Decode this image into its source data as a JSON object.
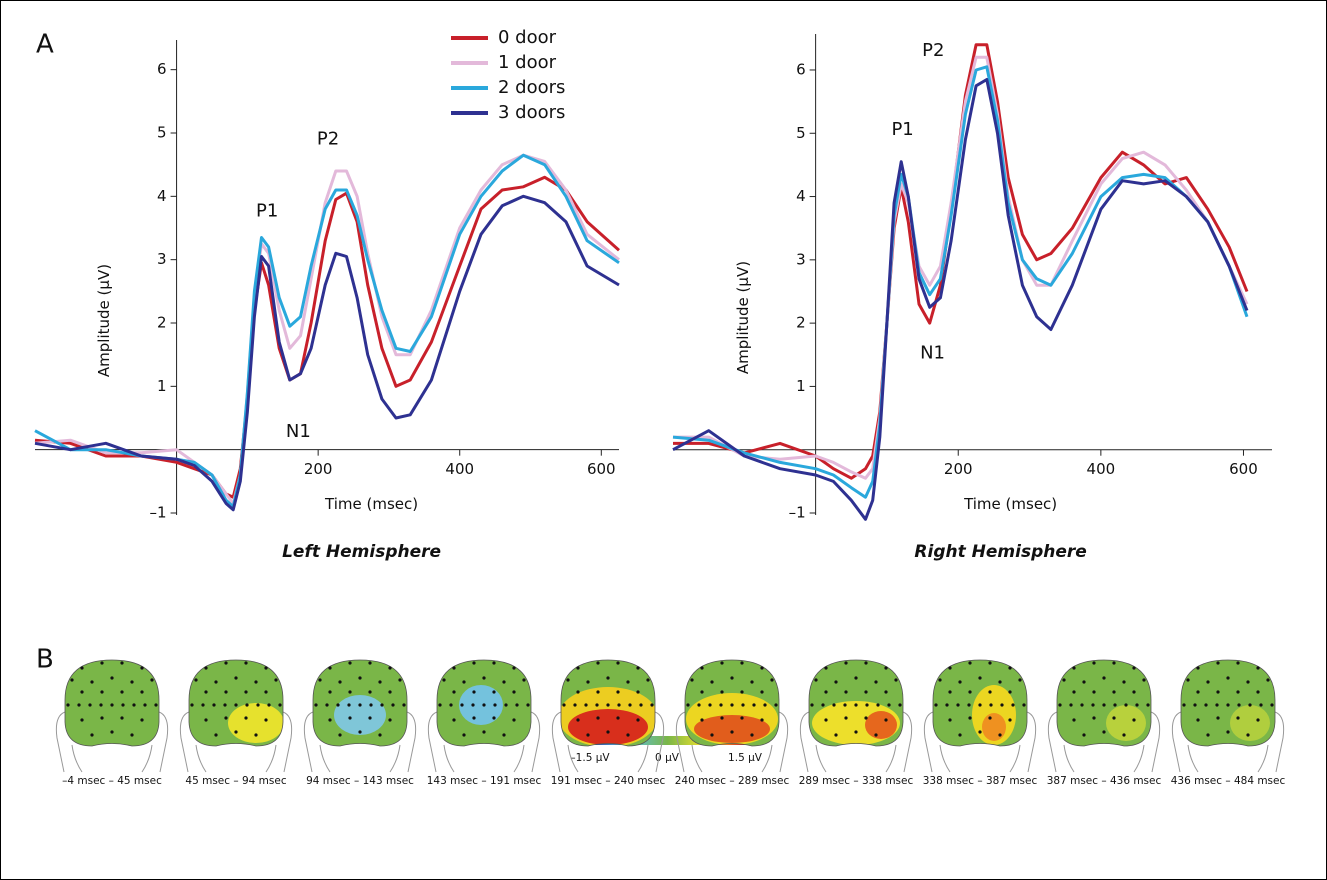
{
  "panels": {
    "a": "A",
    "b": "B"
  },
  "chart_data": [
    {
      "type": "line",
      "subtitle": "Left Hemisphere",
      "x_label": "Time (msec)",
      "y_label": "Amplitude (µV)",
      "legend": "top-right",
      "x": [
        -200,
        -150,
        -100,
        -50,
        0,
        25,
        50,
        70,
        80,
        90,
        100,
        110,
        120,
        130,
        145,
        160,
        175,
        190,
        210,
        225,
        240,
        255,
        270,
        290,
        310,
        330,
        360,
        400,
        430,
        460,
        490,
        520,
        550,
        580,
        625
      ],
      "xlim": [
        -200,
        625
      ],
      "xticks": [
        200,
        400,
        600
      ],
      "ylim": [
        -1,
        6.5
      ],
      "yticks": [
        {
          "value": -1,
          "label": "–1"
        },
        1,
        2,
        3,
        4,
        5,
        6
      ],
      "series": [
        {
          "name": "0 door",
          "color": "#c8202a",
          "values": [
            0.15,
            0.1,
            -0.1,
            -0.1,
            -0.2,
            -0.3,
            -0.4,
            -0.7,
            -0.75,
            -0.3,
            0.8,
            2.2,
            2.95,
            2.6,
            1.6,
            1.1,
            1.2,
            2.0,
            3.3,
            3.95,
            4.05,
            3.6,
            2.6,
            1.6,
            1.0,
            1.1,
            1.7,
            2.9,
            3.8,
            4.1,
            4.15,
            4.3,
            4.1,
            3.6,
            3.15
          ]
        },
        {
          "name": "1 door",
          "color": "#e3b9da",
          "values": [
            0.1,
            0.15,
            -0.05,
            -0.05,
            0.0,
            -0.2,
            -0.4,
            -0.7,
            -0.85,
            -0.4,
            0.9,
            2.4,
            3.25,
            3.1,
            2.2,
            1.6,
            1.8,
            2.7,
            3.9,
            4.4,
            4.4,
            4.0,
            3.1,
            2.1,
            1.5,
            1.5,
            2.2,
            3.5,
            4.1,
            4.5,
            4.65,
            4.55,
            4.1,
            3.4,
            3.0
          ]
        },
        {
          "name": "2 doors",
          "color": "#2aa8dc",
          "values": [
            0.3,
            0.0,
            0.0,
            -0.1,
            -0.15,
            -0.2,
            -0.4,
            -0.8,
            -0.9,
            -0.4,
            0.9,
            2.5,
            3.35,
            3.2,
            2.4,
            1.95,
            2.1,
            2.9,
            3.8,
            4.1,
            4.1,
            3.7,
            3.0,
            2.2,
            1.6,
            1.55,
            2.1,
            3.4,
            4.0,
            4.4,
            4.65,
            4.5,
            4.0,
            3.3,
            2.95
          ]
        },
        {
          "name": "3 doors",
          "color": "#2e3191",
          "values": [
            0.1,
            0.0,
            0.1,
            -0.1,
            -0.15,
            -0.25,
            -0.5,
            -0.85,
            -0.95,
            -0.5,
            0.6,
            2.1,
            3.05,
            2.9,
            1.7,
            1.1,
            1.2,
            1.6,
            2.6,
            3.1,
            3.05,
            2.4,
            1.5,
            0.8,
            0.5,
            0.55,
            1.1,
            2.5,
            3.4,
            3.85,
            4.0,
            3.9,
            3.6,
            2.9,
            2.6
          ]
        }
      ],
      "annotations": [
        {
          "text": "P1",
          "x": 128,
          "y": 3.76
        },
        {
          "text": "P2",
          "x": 214,
          "y": 4.9
        },
        {
          "text": "N1",
          "x": 172,
          "y": 0.28
        }
      ]
    },
    {
      "type": "line",
      "subtitle": "Right Hemisphere",
      "x_label": "Time (msec)",
      "y_label": "Amplitude (µV)",
      "x": [
        -200,
        -150,
        -100,
        -50,
        0,
        25,
        50,
        70,
        80,
        90,
        100,
        110,
        120,
        130,
        145,
        160,
        175,
        190,
        210,
        225,
        240,
        255,
        270,
        290,
        310,
        330,
        360,
        400,
        430,
        460,
        490,
        520,
        550,
        580,
        605
      ],
      "xlim": [
        -200,
        640
      ],
      "xticks": [
        200,
        400,
        600
      ],
      "ylim": [
        -1,
        6.6
      ],
      "yticks": [
        {
          "value": -1,
          "label": "–1"
        },
        1,
        2,
        3,
        4,
        5,
        6
      ],
      "series": [
        {
          "color": "#c8202a",
          "values": [
            0.1,
            0.1,
            -0.05,
            0.1,
            -0.1,
            -0.3,
            -0.45,
            -0.3,
            -0.1,
            0.6,
            2.0,
            3.5,
            4.15,
            3.6,
            2.3,
            2.0,
            2.6,
            3.8,
            5.6,
            6.4,
            6.4,
            5.5,
            4.3,
            3.4,
            3.0,
            3.1,
            3.5,
            4.3,
            4.7,
            4.5,
            4.2,
            4.3,
            3.8,
            3.2,
            2.5
          ]
        },
        {
          "color": "#e3b9da",
          "values": [
            0.2,
            0.2,
            -0.1,
            -0.15,
            -0.1,
            -0.2,
            -0.35,
            -0.45,
            -0.3,
            0.5,
            2.0,
            3.6,
            4.2,
            3.9,
            2.9,
            2.6,
            2.9,
            3.9,
            5.5,
            6.2,
            6.2,
            5.3,
            4.0,
            3.0,
            2.6,
            2.6,
            3.3,
            4.2,
            4.6,
            4.7,
            4.5,
            4.1,
            3.6,
            2.9,
            2.3
          ]
        },
        {
          "color": "#2aa8dc",
          "values": [
            0.2,
            0.15,
            -0.05,
            -0.2,
            -0.3,
            -0.4,
            -0.6,
            -0.75,
            -0.5,
            0.4,
            2.0,
            3.7,
            4.35,
            4.0,
            2.8,
            2.45,
            2.7,
            3.7,
            5.3,
            6.0,
            6.05,
            5.2,
            3.9,
            3.0,
            2.7,
            2.6,
            3.1,
            4.0,
            4.3,
            4.35,
            4.3,
            4.0,
            3.6,
            2.9,
            2.1
          ]
        },
        {
          "color": "#2e3191",
          "values": [
            0.0,
            0.3,
            -0.1,
            -0.3,
            -0.4,
            -0.5,
            -0.8,
            -1.1,
            -0.8,
            0.2,
            2.0,
            3.9,
            4.55,
            4.0,
            2.7,
            2.25,
            2.4,
            3.3,
            4.9,
            5.75,
            5.85,
            5.0,
            3.7,
            2.6,
            2.1,
            1.9,
            2.6,
            3.8,
            4.25,
            4.2,
            4.25,
            4.0,
            3.6,
            2.9,
            2.2
          ]
        }
      ],
      "annotations": [
        {
          "text": "P2",
          "x": 165,
          "y": 6.3
        },
        {
          "text": "P1",
          "x": 122,
          "y": 5.05
        },
        {
          "text": "N1",
          "x": 164,
          "y": 1.52
        }
      ]
    }
  ],
  "topomaps": {
    "labels": [
      "–4 msec – 45 msec",
      "45 msec – 94 msec",
      "94 msec – 143 msec",
      "143 msec – 191 msec",
      "191 msec – 240 msec",
      "240 msec – 289 msec",
      "289 msec – 338 msec",
      "338 msec – 387 msec",
      "387 msec – 436 msec",
      "436 msec – 484 msec"
    ],
    "colorbar": {
      "labels": [
        "–1.5 µV",
        "0 µV",
        "1.5 µV"
      ]
    }
  }
}
